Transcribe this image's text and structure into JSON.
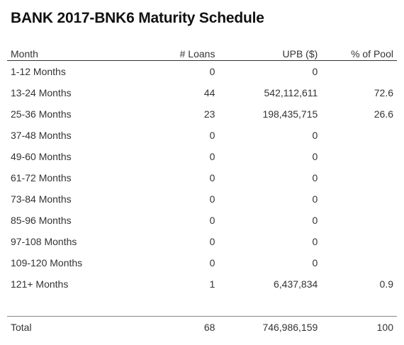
{
  "title": "BANK 2017-BNK6 Maturity Schedule",
  "columns": {
    "month": "Month",
    "loans": "# Loans",
    "upb": "UPB ($)",
    "pct": "% of Pool"
  },
  "rows": [
    {
      "month": "1-12 Months",
      "loans": "0",
      "upb": "0",
      "pct": ""
    },
    {
      "month": "13-24 Months",
      "loans": "44",
      "upb": "542,112,611",
      "pct": "72.6"
    },
    {
      "month": "25-36 Months",
      "loans": "23",
      "upb": "198,435,715",
      "pct": "26.6"
    },
    {
      "month": "37-48 Months",
      "loans": "0",
      "upb": "0",
      "pct": ""
    },
    {
      "month": "49-60 Months",
      "loans": "0",
      "upb": "0",
      "pct": ""
    },
    {
      "month": "61-72 Months",
      "loans": "0",
      "upb": "0",
      "pct": ""
    },
    {
      "month": "73-84 Months",
      "loans": "0",
      "upb": "0",
      "pct": ""
    },
    {
      "month": "85-96 Months",
      "loans": "0",
      "upb": "0",
      "pct": ""
    },
    {
      "month": "97-108 Months",
      "loans": "0",
      "upb": "0",
      "pct": ""
    },
    {
      "month": "109-120 Months",
      "loans": "0",
      "upb": "0",
      "pct": ""
    },
    {
      "month": "121+ Months",
      "loans": "1",
      "upb": "6,437,834",
      "pct": "0.9"
    }
  ],
  "total": {
    "month": "Total",
    "loans": "68",
    "upb": "746,986,159",
    "pct": "100"
  }
}
